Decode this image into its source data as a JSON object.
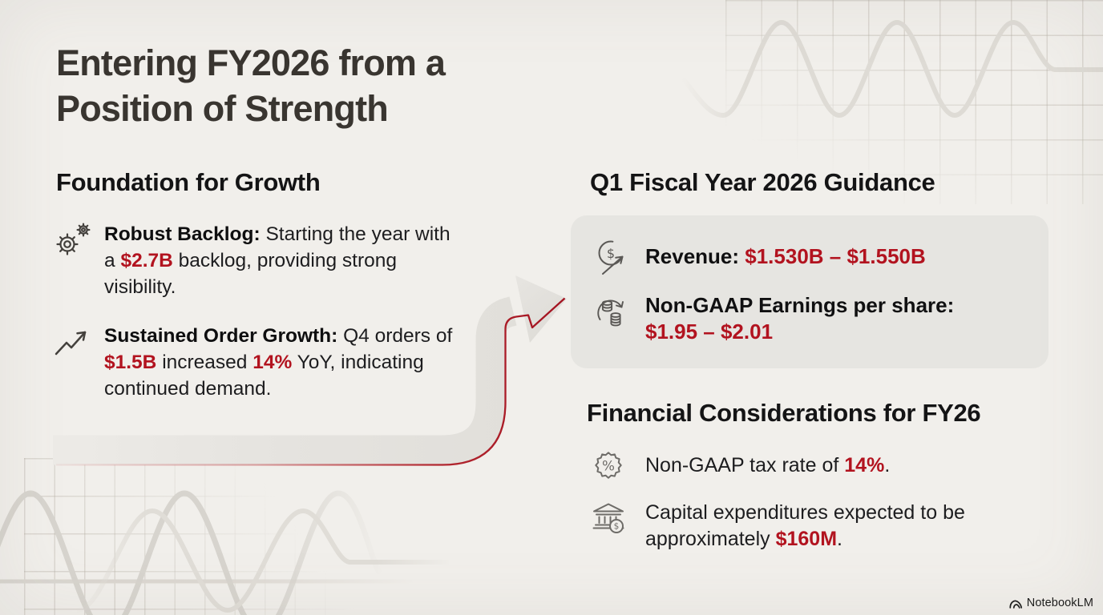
{
  "slide": {
    "title": {
      "line1": "Entering FY2026 from a",
      "line2": "Position of Strength"
    },
    "foundation": {
      "heading": "Foundation for Growth",
      "bullets": [
        {
          "icon": "gears-icon",
          "segments": [
            {
              "text": "Robust Backlog:",
              "style": "bold"
            },
            {
              "text": " Starting the year with a ",
              "style": "normal"
            },
            {
              "text": "$2.7B",
              "style": "red"
            },
            {
              "text": " backlog, providing strong visibility.",
              "style": "normal"
            }
          ]
        },
        {
          "icon": "trend-up-icon",
          "segments": [
            {
              "text": "Sustained Order Growth:",
              "style": "bold"
            },
            {
              "text": " Q4 orders of ",
              "style": "normal"
            },
            {
              "text": "$1.5B",
              "style": "red"
            },
            {
              "text": " increased ",
              "style": "normal"
            },
            {
              "text": "14%",
              "style": "red"
            },
            {
              "text": " YoY, indicating continued demand.",
              "style": "normal"
            }
          ]
        }
      ]
    },
    "guidance": {
      "heading": "Q1 Fiscal Year 2026 Guidance",
      "items": [
        {
          "icon": "dollar-growth-icon",
          "segments": [
            {
              "text": "Revenue: ",
              "style": "label"
            },
            {
              "text": "$1.530B – $1.550B",
              "style": "red"
            }
          ]
        },
        {
          "icon": "coins-cycle-icon",
          "segments": [
            {
              "text": "Non-GAAP Earnings per share: ",
              "style": "label"
            },
            {
              "text": "$1.95 – $2.01",
              "style": "red"
            }
          ]
        }
      ]
    },
    "considerations": {
      "heading": "Financial Considerations for FY26",
      "bullets": [
        {
          "icon": "percent-badge-icon",
          "segments": [
            {
              "text": "Non-GAAP tax rate of ",
              "style": "normal"
            },
            {
              "text": "14%",
              "style": "red"
            },
            {
              "text": ".",
              "style": "normal"
            }
          ]
        },
        {
          "icon": "bank-icon",
          "segments": [
            {
              "text": "Capital expenditures expected to be approximately ",
              "style": "normal"
            },
            {
              "text": "$160M",
              "style": "red"
            },
            {
              "text": ".",
              "style": "normal"
            }
          ]
        }
      ]
    },
    "footer": {
      "brand": "NotebookLM"
    }
  },
  "colors": {
    "background": "#f1efeb",
    "card_background": "#e6e5e1",
    "accent_red": "#b2131f",
    "title_text": "#393530",
    "heading_text": "#141415",
    "body_text": "#1d1d1f"
  }
}
